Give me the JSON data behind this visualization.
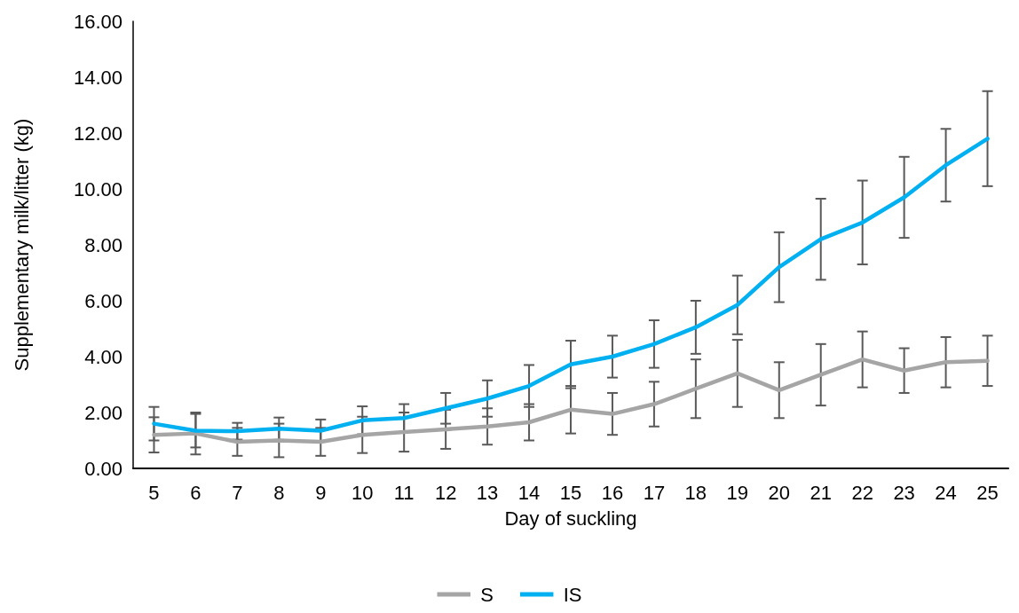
{
  "chart_data": {
    "type": "line",
    "xlabel": "Day of suckling",
    "ylabel": "Supplementary milk/litter (kg)",
    "categories": [
      "5",
      "6",
      "7",
      "8",
      "9",
      "10",
      "11",
      "12",
      "13",
      "14",
      "15",
      "16",
      "17",
      "18",
      "19",
      "20",
      "21",
      "22",
      "23",
      "24",
      "25"
    ],
    "series": [
      {
        "name": "S",
        "color": "#a5a5a5",
        "values": [
          1.2,
          1.25,
          0.95,
          1.0,
          0.95,
          1.2,
          1.3,
          1.4,
          1.5,
          1.65,
          2.1,
          1.95,
          2.3,
          2.85,
          3.4,
          2.8,
          3.35,
          3.9,
          3.5,
          3.8,
          3.85
        ],
        "errors": [
          0.63,
          0.75,
          0.5,
          0.6,
          0.5,
          0.65,
          0.7,
          0.7,
          0.65,
          0.65,
          0.85,
          0.75,
          0.8,
          1.05,
          1.2,
          1.0,
          1.1,
          1.0,
          0.8,
          0.9,
          0.9
        ]
      },
      {
        "name": "IS",
        "color": "#00b0f0",
        "values": [
          1.6,
          1.35,
          1.33,
          1.42,
          1.35,
          1.72,
          1.8,
          2.15,
          2.5,
          2.95,
          3.72,
          4.0,
          4.45,
          5.05,
          5.85,
          7.2,
          8.2,
          8.8,
          9.7,
          10.85,
          11.8
        ],
        "errors": [
          0.6,
          0.6,
          0.3,
          0.4,
          0.4,
          0.5,
          0.5,
          0.55,
          0.65,
          0.75,
          0.85,
          0.75,
          0.85,
          0.95,
          1.05,
          1.25,
          1.45,
          1.5,
          1.45,
          1.3,
          1.7
        ]
      }
    ],
    "ylim": [
      0,
      16
    ],
    "yticks": [
      {
        "value": 0,
        "label": "0.00"
      },
      {
        "value": 2,
        "label": "2.00"
      },
      {
        "value": 4,
        "label": "4.00"
      },
      {
        "value": 6,
        "label": "6.00"
      },
      {
        "value": 8,
        "label": "8.00"
      },
      {
        "value": 10,
        "label": "10.00"
      },
      {
        "value": 12,
        "label": "12.00"
      },
      {
        "value": 14,
        "label": "14.00"
      },
      {
        "value": 16,
        "label": "16.00"
      }
    ],
    "grid": false,
    "legend": "bottom",
    "marker": "none",
    "line_style": "solid"
  }
}
